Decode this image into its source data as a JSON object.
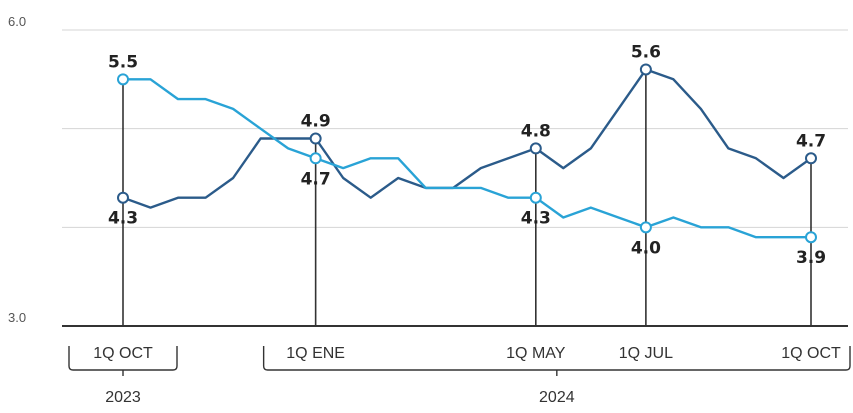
{
  "chart_data": {
    "type": "line",
    "title": "",
    "xlabel": "",
    "ylabel": "",
    "ylim": [
      3.0,
      6.0
    ],
    "y_ticks": [
      {
        "label": "6.0",
        "value": 6.0
      },
      {
        "label": "3.0",
        "value": 3.0
      }
    ],
    "gridlines": [
      6.0,
      5.0,
      4.0,
      3.0
    ],
    "grid": true,
    "legend": "none",
    "colors": {
      "series_dark": "#2b5b8a",
      "series_light": "#29a3d6",
      "axis": "#333333",
      "grid": "#d5d5d5"
    },
    "series": [
      {
        "key": "dark",
        "values": [
          4.3,
          4.2,
          4.3,
          4.3,
          4.5,
          4.9,
          4.9,
          4.9,
          4.5,
          4.3,
          4.5,
          4.4,
          4.4,
          4.6,
          4.7,
          4.8,
          4.6,
          4.8,
          5.2,
          5.6,
          5.5,
          5.2,
          4.8,
          4.7,
          4.5,
          4.7
        ]
      },
      {
        "key": "light",
        "values": [
          5.5,
          5.5,
          5.3,
          5.3,
          5.2,
          5.0,
          4.8,
          4.7,
          4.6,
          4.7,
          4.7,
          4.4,
          4.4,
          4.4,
          4.3,
          4.3,
          4.1,
          4.2,
          4.1,
          4.0,
          4.1,
          4.0,
          4.0,
          3.9,
          3.9,
          3.9
        ]
      }
    ],
    "markers": [
      {
        "index": 0,
        "category": "1Q OCT",
        "dark": {
          "value": 4.3,
          "label": "4.3"
        },
        "light": {
          "value": 5.5,
          "label": "5.5"
        }
      },
      {
        "index": 7,
        "category": "1Q ENE",
        "dark": {
          "value": 4.9,
          "label": "4.9"
        },
        "light": {
          "value": 4.7,
          "label": "4.7"
        }
      },
      {
        "index": 15,
        "category": "1Q MAY",
        "dark": {
          "value": 4.8,
          "label": "4.8"
        },
        "light": {
          "value": 4.3,
          "label": "4.3"
        }
      },
      {
        "index": 19,
        "category": "1Q JUL",
        "dark": {
          "value": 5.6,
          "label": "5.6"
        },
        "light": {
          "value": 4.0,
          "label": "4.0"
        }
      },
      {
        "index": 25,
        "category": "1Q OCT",
        "dark": {
          "value": 4.7,
          "label": "4.7"
        },
        "light": {
          "value": 3.9,
          "label": "3.9"
        }
      }
    ],
    "years": [
      {
        "label": "2023",
        "from_index": 0,
        "to_index": 0
      },
      {
        "label": "2024",
        "from_index": 7,
        "to_index": 25
      }
    ]
  }
}
